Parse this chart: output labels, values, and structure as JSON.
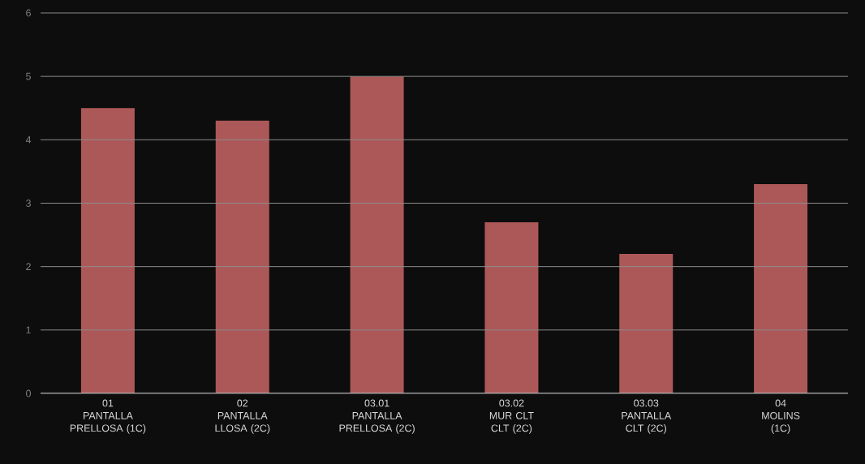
{
  "chart_data": {
    "type": "bar",
    "categories": [
      "01\nPANTALLA\nPRELLOSA (1C)",
      "02\nPANTALLA\nLLOSA (2C)",
      "03.01\nPANTALLA\nPRELLOSA (2C)",
      "03.02\nMUR CLT\nCLT (2C)",
      "03.03\nPANTALLA\nCLT (2C)",
      "04\nMOLINS\n(1C)"
    ],
    "values": [
      4.5,
      4.3,
      5.0,
      2.7,
      2.2,
      3.3
    ],
    "color": "#ad5858",
    "ylim": [
      0,
      6
    ],
    "yticks": [
      0,
      1,
      2,
      3,
      4,
      5,
      6
    ],
    "grid": "y"
  }
}
